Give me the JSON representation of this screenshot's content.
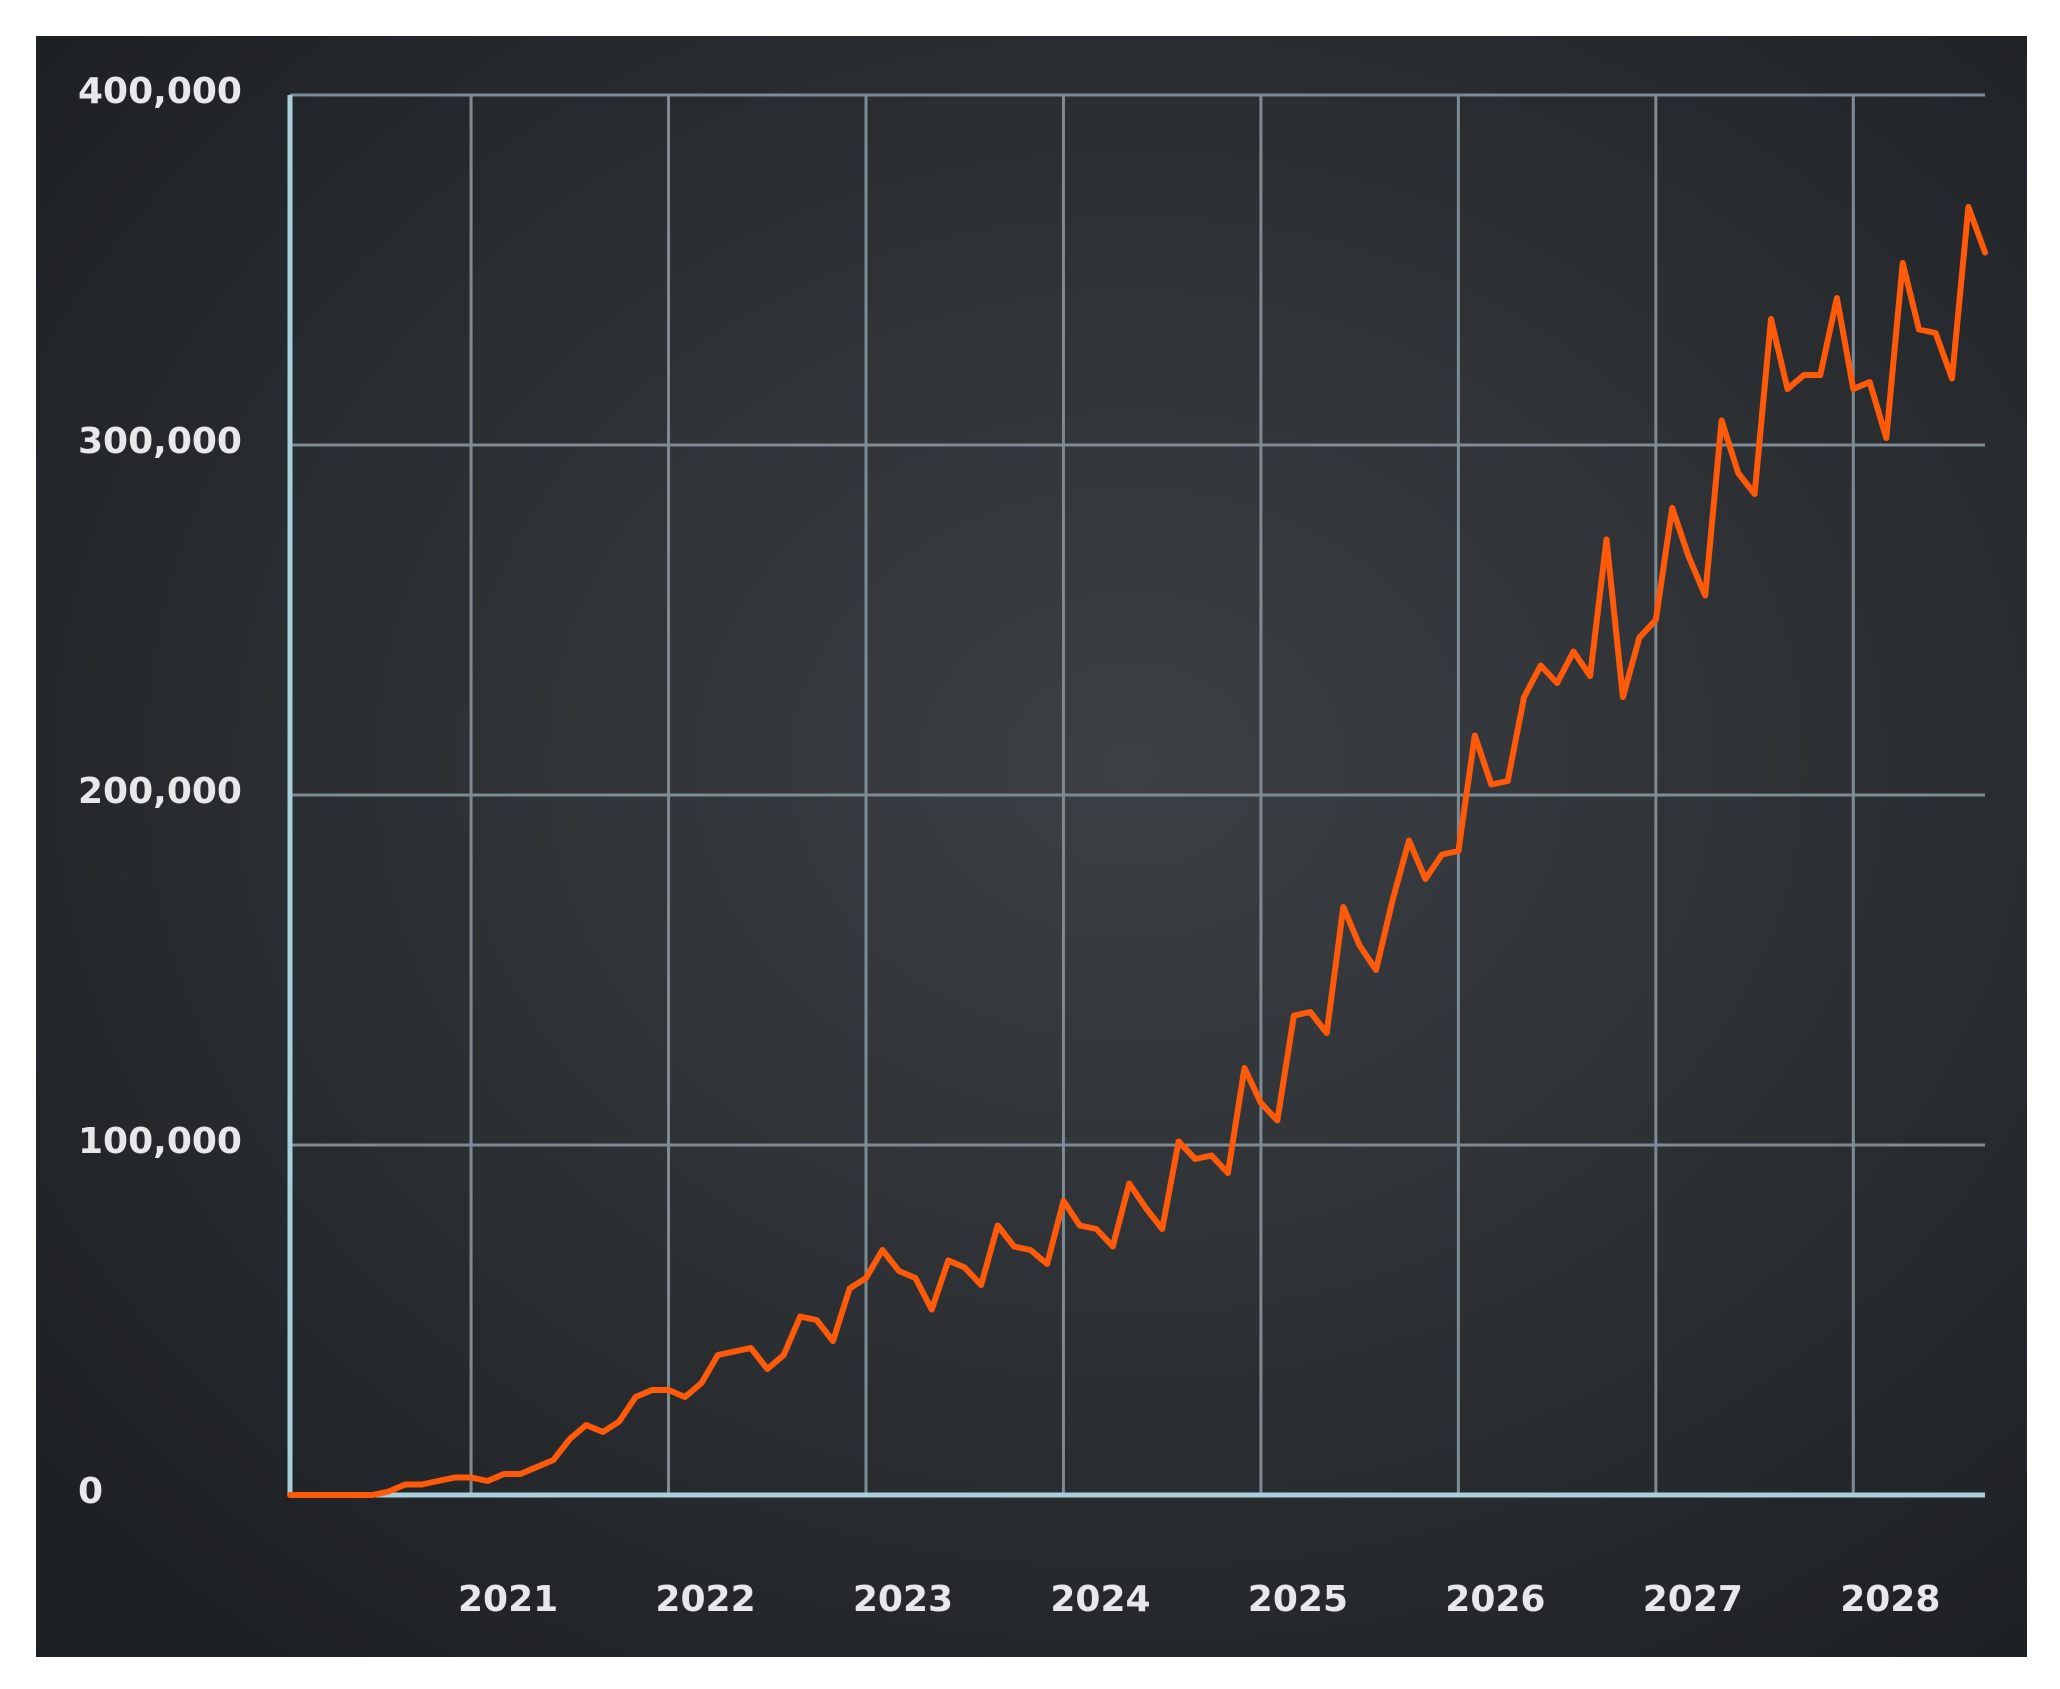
{
  "chart_data": {
    "type": "line",
    "color": "#ff5a0a",
    "x": [
      2020.083,
      2020.167,
      2020.25,
      2020.333,
      2020.417,
      2020.5,
      2020.583,
      2020.667,
      2020.75,
      2020.833,
      2020.917,
      2021,
      2021.083,
      2021.167,
      2021.25,
      2021.333,
      2021.417,
      2021.5,
      2021.583,
      2021.667,
      2021.75,
      2021.833,
      2021.917,
      2022,
      2022.083,
      2022.167,
      2022.25,
      2022.333,
      2022.417,
      2022.5,
      2022.583,
      2022.667,
      2022.75,
      2022.833,
      2022.917,
      2023,
      2023.083,
      2023.167,
      2023.25,
      2023.333,
      2023.417,
      2023.5,
      2023.583,
      2023.667,
      2023.75,
      2023.833,
      2023.917,
      2024,
      2024.083,
      2024.167,
      2024.25,
      2024.333,
      2024.417,
      2024.5,
      2024.583,
      2024.667,
      2024.75,
      2024.833,
      2024.917,
      2025,
      2025.083,
      2025.167,
      2025.25,
      2025.333,
      2025.417,
      2025.5,
      2025.583,
      2025.667,
      2025.75,
      2025.833,
      2025.917,
      2026,
      2026.083,
      2026.167,
      2026.25,
      2026.333,
      2026.417,
      2026.5,
      2026.583,
      2026.667,
      2026.75,
      2026.833,
      2026.917,
      2027,
      2027.083,
      2027.167,
      2027.25,
      2027.333,
      2027.417,
      2027.5,
      2027.583,
      2027.667,
      2027.75,
      2027.833,
      2027.917,
      2028,
      2028.083,
      2028.167,
      2028.25,
      2028.333,
      2028.417,
      2028.5,
      2028.583,
      2028.667
    ],
    "values": [
      0,
      0,
      0,
      0,
      0,
      0,
      1000,
      3000,
      3000,
      4000,
      5000,
      5000,
      4000,
      6000,
      6000,
      8000,
      10000,
      16000,
      20000,
      18000,
      21000,
      28000,
      30000,
      30000,
      28000,
      32000,
      40000,
      41000,
      42000,
      36000,
      40000,
      51000,
      50000,
      44000,
      59000,
      62000,
      70000,
      64000,
      62000,
      53000,
      67000,
      65000,
      60000,
      77000,
      71000,
      70000,
      66000,
      84000,
      77000,
      76000,
      71000,
      89000,
      82000,
      76000,
      101000,
      96000,
      97000,
      92000,
      122000,
      112000,
      107000,
      137000,
      138000,
      132000,
      168000,
      157000,
      150000,
      170000,
      187000,
      176000,
      183000,
      184000,
      217000,
      203000,
      204000,
      228000,
      237000,
      232000,
      241000,
      234000,
      273000,
      228000,
      245000,
      250000,
      282000,
      268000,
      257000,
      307000,
      292000,
      286000,
      336000,
      316000,
      320000,
      320000,
      342000,
      316000,
      318000,
      302000,
      352000,
      333000,
      332000,
      319000,
      368000,
      355000
    ],
    "xlim": [
      2020.083,
      2028.667
    ],
    "xticks": [
      2021,
      2022,
      2023,
      2024,
      2025,
      2026,
      2027,
      2028
    ],
    "ylim": [
      0,
      400000
    ],
    "yticks": [
      0,
      {
        "value": 100000,
        "label": "100,000"
      },
      {
        "value": 200000,
        "label": "200,000"
      },
      {
        "value": 300000,
        "label": "300,000"
      },
      {
        "value": 400000,
        "label": "400,000"
      }
    ],
    "grid": true
  }
}
